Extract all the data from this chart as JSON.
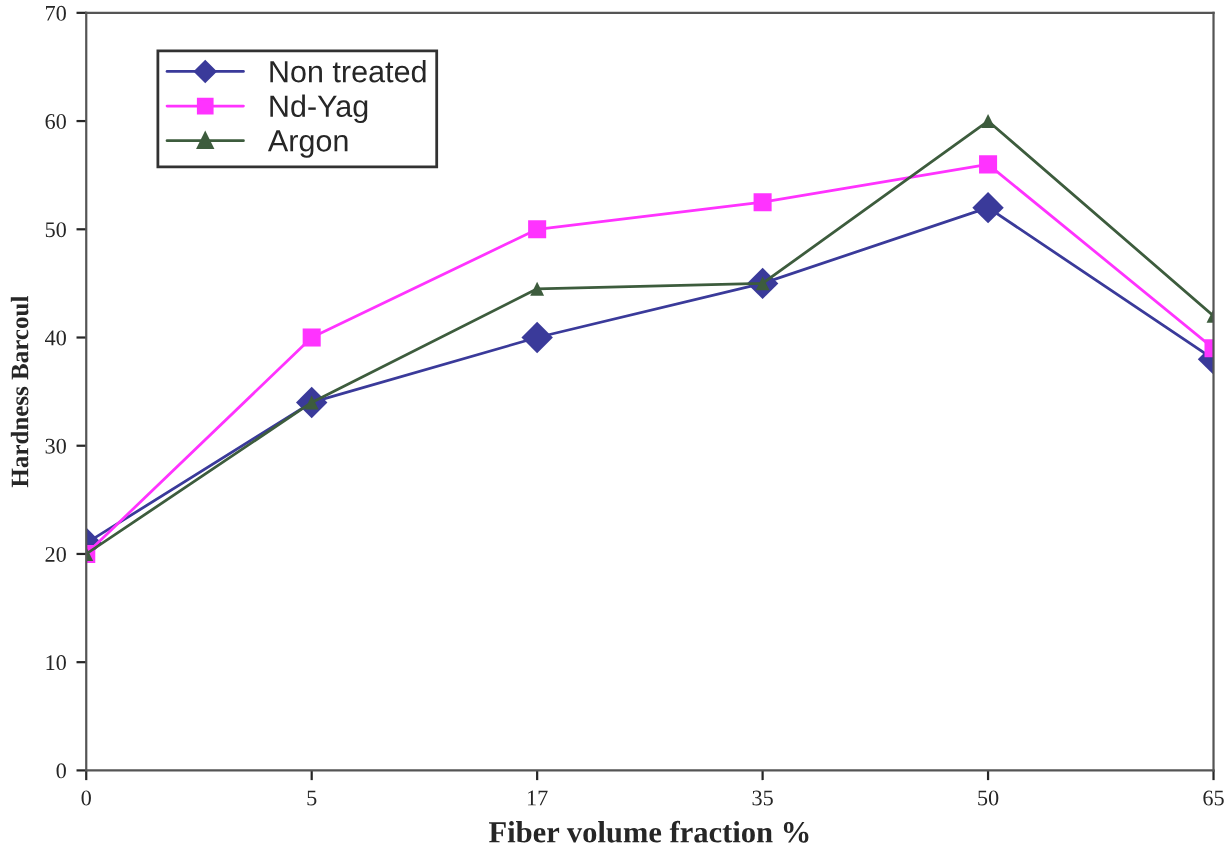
{
  "chart_data": {
    "type": "line",
    "xlabel": "Fiber volume fraction %",
    "ylabel": "Hardness Barcoul",
    "categories": [
      "0",
      "5",
      "17",
      "35",
      "50",
      "65"
    ],
    "series": [
      {
        "name": "Non treated",
        "color": "#3a3a9a",
        "marker": "diamond",
        "values": [
          21,
          34,
          40,
          45,
          52,
          38
        ]
      },
      {
        "name": "Nd-Yag",
        "color": "#ff33ff",
        "marker": "square",
        "values": [
          20,
          40,
          50,
          52.5,
          56,
          39
        ]
      },
      {
        "name": "Argon",
        "color": "#3d5c3d",
        "marker": "triangle",
        "values": [
          20,
          34,
          44.5,
          45,
          60,
          42
        ]
      }
    ],
    "ylim": [
      0,
      70
    ],
    "yticks": [
      0,
      10,
      20,
      30,
      40,
      50,
      60,
      70
    ],
    "grid": false,
    "legend": "top left",
    "line_style": "solid"
  }
}
